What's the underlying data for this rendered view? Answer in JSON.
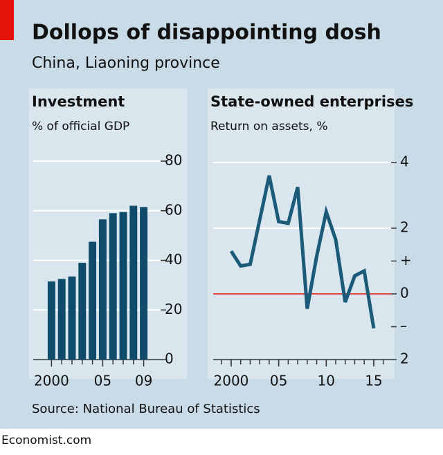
{
  "title": "Dollops of disappointing dosh",
  "subtitle": "China, Liaoning province",
  "source": "Source: National Bureau of Statistics",
  "footer": "Economist.com",
  "chart_data": [
    {
      "type": "bar",
      "title": "Investment",
      "subtitle": "% of official GDP",
      "categories": [
        "2000",
        null,
        null,
        null,
        null,
        "05",
        null,
        null,
        null,
        "09"
      ],
      "values": [
        31.5,
        32.5,
        33.5,
        39,
        47.5,
        56.5,
        59,
        59.5,
        62,
        61.5
      ],
      "color": "#0f4c6b",
      "ylim": [
        0,
        80
      ],
      "yticks": [
        0,
        20,
        40,
        60,
        80
      ],
      "grid": true
    },
    {
      "type": "line",
      "title": "State-owned enterprises",
      "subtitle": "Return on assets, %",
      "x": [
        2000,
        2001,
        2002,
        2003,
        2004,
        2005,
        2006,
        2007,
        2008,
        2009,
        2010,
        2011,
        2012,
        2013,
        2014,
        2015
      ],
      "series": [
        {
          "color": "#1b5a79",
          "values": [
            1.3,
            0.85,
            0.9,
            2.25,
            3.6,
            2.2,
            2.15,
            3.25,
            -0.45,
            1.15,
            2.5,
            1.65,
            -0.25,
            0.55,
            0.7,
            -1.05
          ]
        }
      ],
      "xlim": [
        1998,
        2017
      ],
      "xticks": [
        {
          "value": 2000,
          "label": "2000"
        },
        {
          "value": 2005,
          "label": "05"
        },
        {
          "value": 2010,
          "label": "10"
        },
        {
          "value": 2015,
          "label": "15"
        }
      ],
      "ylim": [
        -2,
        4
      ],
      "yticks": [
        {
          "value": -2,
          "label": "2"
        },
        {
          "value": -1,
          "label": "–"
        },
        0,
        {
          "value": 1,
          "label": "+"
        },
        2,
        4
      ],
      "grid": true,
      "zero_line_color": "#e3120b"
    }
  ]
}
